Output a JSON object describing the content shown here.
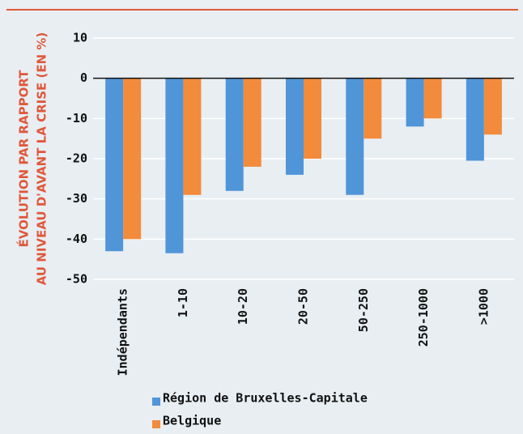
{
  "chart_data": {
    "type": "bar",
    "ylabel": [
      "ÉVOLUTION PAR RAPPORT",
      "AU NIVEAU D'AVANT LA CRISE (EN %)"
    ],
    "categories": [
      "Indépendants",
      "1-10",
      "10-20",
      "20-50",
      "50-250",
      "250-1000",
      ">1000"
    ],
    "series": [
      {
        "name": "Région de Bruxelles-Capitale",
        "color": "#4f95d8",
        "values": [
          -43,
          -43.5,
          -28,
          -24,
          -29,
          -12,
          -20.5
        ]
      },
      {
        "name": "Belgique",
        "color": "#f28b3c",
        "values": [
          -40,
          -29,
          -22,
          -20,
          -15,
          -10,
          -14
        ]
      }
    ],
    "ylim": [
      -50,
      10
    ],
    "yticks": [
      -50,
      -40,
      -30,
      -20,
      -10,
      0,
      10
    ],
    "grid": true
  }
}
